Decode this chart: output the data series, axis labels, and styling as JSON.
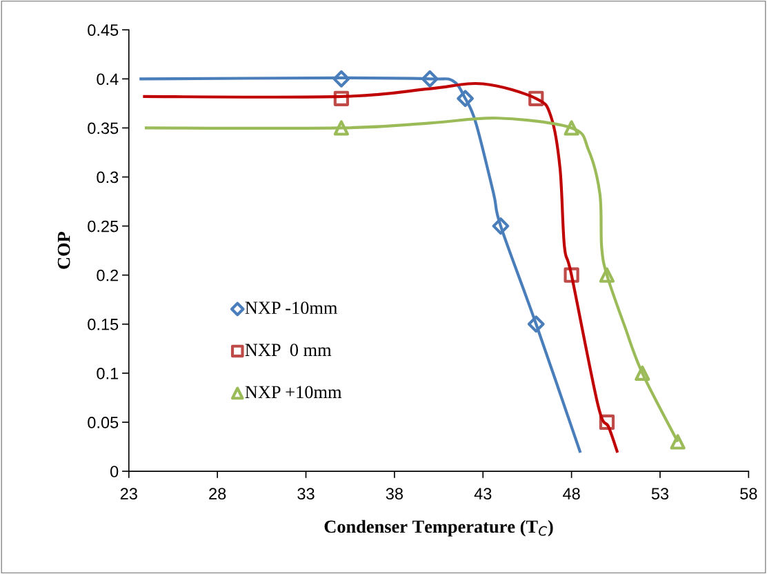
{
  "chart_data": {
    "type": "line",
    "xlabel": "Condenser Temperature (T$_{C}$)",
    "ylabel": "COP",
    "xlim": [
      23,
      58
    ],
    "xticks": [
      23,
      28,
      33,
      38,
      43,
      48,
      53,
      58
    ],
    "ylim": [
      0,
      0.45
    ],
    "yticks": [
      0,
      0.05,
      0.1,
      0.15,
      0.2,
      0.25,
      0.3,
      0.35,
      0.4,
      0.45
    ],
    "grid": false,
    "legend": "lower left",
    "series": [
      {
        "color": "#4a7ebb",
        "marker": "none",
        "x": [
          23.6,
          35,
          40,
          41.3,
          42,
          42.6,
          43.6,
          44,
          46,
          48.5
        ],
        "values": [
          0.4,
          0.401,
          0.4,
          0.398,
          0.38,
          0.355,
          0.283,
          0.25,
          0.15,
          0.019
        ]
      },
      {
        "color": "#c00000",
        "marker": "none",
        "x": [
          23.8,
          35,
          40,
          43,
          46,
          46.85,
          47.35,
          47.6,
          48,
          49.5,
          50.1,
          50.6
        ],
        "values": [
          0.382,
          0.382,
          0.39,
          0.395,
          0.38,
          0.361,
          0.309,
          0.229,
          0.2,
          0.067,
          0.045,
          0.019
        ]
      },
      {
        "color": "#9bbb59",
        "marker": "none",
        "x": [
          23.9,
          35,
          40,
          43.85,
          48,
          48.95,
          49.6,
          49.7,
          50,
          51,
          52,
          54
        ],
        "values": [
          0.35,
          0.35,
          0.355,
          0.36,
          0.35,
          0.328,
          0.283,
          0.229,
          0.2,
          0.148,
          0.1,
          0.03
        ]
      },
      {
        "type": "scatter",
        "name": "NXP -10mm",
        "color": "#4a7ebb",
        "marker": "diamond",
        "x": [
          35,
          40,
          42,
          44,
          46
        ],
        "values": [
          0.4,
          0.4,
          0.38,
          0.25,
          0.15
        ]
      },
      {
        "type": "scatter",
        "name": "NXP  0 mm",
        "color": "#be4b48",
        "marker": "square",
        "x": [
          35,
          46,
          48,
          50
        ],
        "values": [
          0.38,
          0.38,
          0.2,
          0.05
        ]
      },
      {
        "type": "scatter",
        "name": "NXP +10mm",
        "color": "#9bbb59",
        "marker": "triangle",
        "x": [
          35,
          48,
          50,
          52,
          54
        ],
        "values": [
          0.35,
          0.35,
          0.2,
          0.1,
          0.03
        ]
      }
    ]
  }
}
